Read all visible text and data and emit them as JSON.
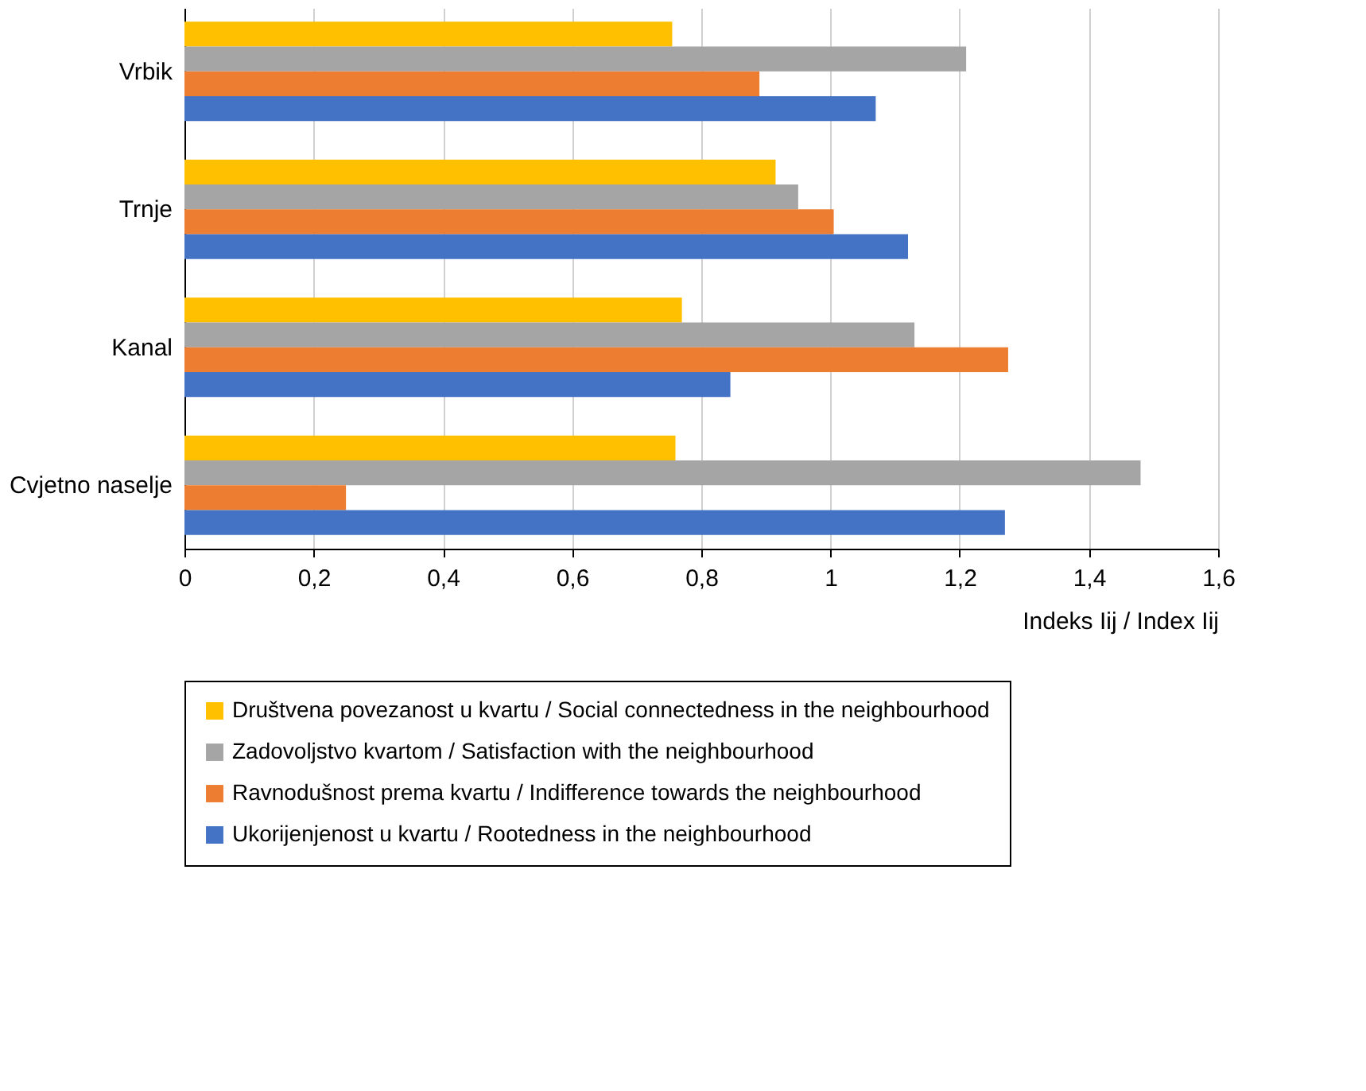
{
  "chart_data": {
    "type": "bar",
    "orientation": "horizontal",
    "xlabel": "Indeks Iij / Index Iij",
    "categories": [
      "Vrbik",
      "Trnje",
      "Kanal",
      "Cvjetno naselje"
    ],
    "series": [
      {
        "name": "Društvena povezanost u kvartu / Social connectedness in the neighbourhood",
        "color": "#ffc000",
        "values": [
          0.755,
          0.915,
          0.77,
          0.76
        ]
      },
      {
        "name": "Zadovoljstvo kvartom / Satisfaction with the neighbourhood",
        "color": "#a5a5a5",
        "values": [
          1.21,
          0.95,
          1.13,
          1.48
        ]
      },
      {
        "name": "Ravnodušnost prema kvartu / Indifference towards the neighbourhood",
        "color": "#ed7d31",
        "values": [
          0.89,
          1.005,
          1.275,
          0.25
        ]
      },
      {
        "name": "Ukorijenjenost u kvartu / Rootedness in the neighbourhood",
        "color": "#4472c4",
        "values": [
          1.07,
          1.12,
          0.845,
          1.27
        ]
      }
    ],
    "xlim": [
      0,
      1.6
    ],
    "xticks": [
      0,
      {
        "value": 0.2,
        "label": "0,2"
      },
      {
        "value": 0.4,
        "label": "0,4"
      },
      {
        "value": 0.6,
        "label": "0,6"
      },
      {
        "value": 0.8,
        "label": "0,8"
      },
      1,
      {
        "value": 1.2,
        "label": "1,2"
      },
      {
        "value": 1.4,
        "label": "1,4"
      },
      {
        "value": 1.6,
        "label": "1,6"
      }
    ],
    "grid": "x",
    "legend": "bottom"
  }
}
